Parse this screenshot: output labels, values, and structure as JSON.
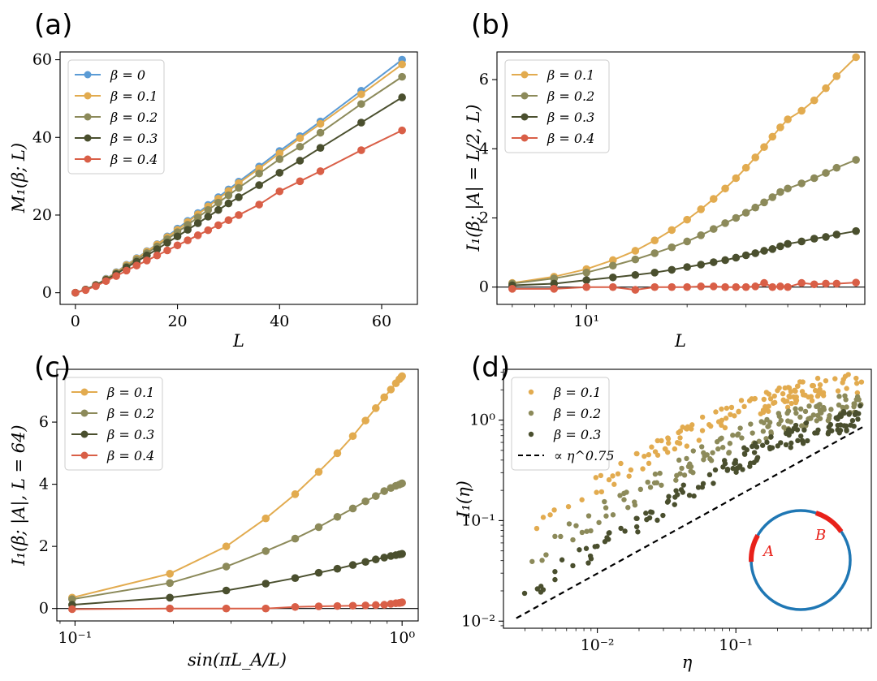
{
  "chart_data": [
    {
      "id": "a",
      "panel_label": "(a)",
      "type": "line",
      "xlabel": "L",
      "ylabel": "M₁(β; L)",
      "xscale": "linear",
      "yscale": "linear",
      "xlim": [
        -3,
        67
      ],
      "ylim": [
        -3,
        62
      ],
      "xticks": [
        0,
        20,
        40,
        60
      ],
      "xtick_labels": [
        "0",
        "20",
        "40",
        "60"
      ],
      "yticks": [
        0,
        20,
        40,
        60
      ],
      "ytick_labels": [
        "0",
        "20",
        "40",
        "60"
      ],
      "legend_position": "top-left",
      "x": [
        0,
        2,
        4,
        6,
        8,
        10,
        12,
        14,
        16,
        18,
        20,
        22,
        24,
        26,
        28,
        30,
        32,
        36,
        40,
        44,
        48,
        56,
        64
      ],
      "series": [
        {
          "name": "β = 0",
          "color": "#5b9bd5",
          "values": [
            0,
            0.8,
            2,
            3.6,
            5.3,
            7.2,
            8.9,
            10.7,
            12.5,
            14.5,
            16.5,
            18.5,
            20.5,
            22.6,
            24.6,
            26.6,
            28.6,
            32.5,
            36.5,
            40.3,
            44.1,
            52,
            60
          ]
        },
        {
          "name": "β = 0.1",
          "color": "#e2ab4f",
          "values": [
            0,
            0.8,
            2,
            3.5,
            5.2,
            7.1,
            8.8,
            10.6,
            12.4,
            14.3,
            16.2,
            18.2,
            20.2,
            22.2,
            24.2,
            26.2,
            28.2,
            32,
            35.9,
            39.8,
            43.5,
            51.1,
            58.8
          ]
        },
        {
          "name": "β = 0.2",
          "color": "#8c8a5a",
          "values": [
            0,
            0.8,
            2,
            3.4,
            5.0,
            6.8,
            8.5,
            10.2,
            11.9,
            13.8,
            15.6,
            17.5,
            19.4,
            21.3,
            23.2,
            25.1,
            27,
            30.7,
            34.4,
            37.6,
            41.2,
            48.6,
            55.6
          ]
        },
        {
          "name": "β = 0.3",
          "color": "#4a4f2e",
          "values": [
            0,
            0.8,
            1.9,
            3.3,
            4.8,
            6.5,
            8.0,
            9.6,
            11.2,
            12.9,
            14.5,
            16.2,
            17.9,
            19.6,
            21.3,
            23.0,
            24.6,
            27.7,
            30.9,
            34.0,
            37.3,
            43.8,
            50.3
          ]
        },
        {
          "name": "β = 0.4",
          "color": "#d95f47",
          "values": [
            0,
            0.7,
            1.7,
            3.0,
            4.3,
            5.7,
            7.0,
            8.3,
            9.6,
            10.9,
            12.2,
            13.5,
            14.8,
            16.1,
            17.4,
            18.7,
            20.0,
            22.7,
            26.1,
            28.7,
            31.3,
            36.7,
            41.8
          ]
        }
      ]
    },
    {
      "id": "b",
      "panel_label": "(b)",
      "type": "line",
      "xlabel": "L",
      "ylabel": "I₁(β; |A| = L/2, L)",
      "xscale": "log",
      "yscale": "linear",
      "xlim": [
        5.4,
        68
      ],
      "ylim": [
        -0.5,
        6.8
      ],
      "xticks": [
        10
      ],
      "xtick_labels": [
        "10¹"
      ],
      "yticks": [
        0,
        2,
        4,
        6
      ],
      "ytick_labels": [
        "0",
        "2",
        "4",
        "6"
      ],
      "hline": 0,
      "legend_position": "top-left",
      "x": [
        6,
        8,
        10,
        12,
        14,
        16,
        18,
        20,
        22,
        24,
        26,
        28,
        30,
        32,
        34,
        36,
        38,
        40,
        44,
        48,
        52,
        56,
        64
      ],
      "series": [
        {
          "name": "β = 0.1",
          "color": "#e2ab4f",
          "values": [
            0.12,
            0.3,
            0.52,
            0.78,
            1.05,
            1.35,
            1.65,
            1.95,
            2.25,
            2.55,
            2.85,
            3.15,
            3.45,
            3.75,
            4.05,
            4.35,
            4.62,
            4.85,
            5.1,
            5.4,
            5.75,
            6.1,
            6.65
          ]
        },
        {
          "name": "β = 0.2",
          "color": "#8c8a5a",
          "values": [
            0.1,
            0.25,
            0.42,
            0.62,
            0.8,
            0.98,
            1.15,
            1.32,
            1.5,
            1.68,
            1.85,
            2.0,
            2.15,
            2.3,
            2.45,
            2.6,
            2.75,
            2.85,
            3.0,
            3.15,
            3.3,
            3.45,
            3.68
          ]
        },
        {
          "name": "β = 0.3",
          "color": "#4a4f2e",
          "values": [
            0.05,
            0.1,
            0.2,
            0.28,
            0.35,
            0.42,
            0.5,
            0.58,
            0.65,
            0.72,
            0.78,
            0.85,
            0.92,
            0.98,
            1.05,
            1.1,
            1.18,
            1.25,
            1.32,
            1.4,
            1.45,
            1.52,
            1.62
          ]
        },
        {
          "name": "β = 0.4",
          "color": "#d95f47",
          "values": [
            -0.05,
            -0.05,
            0.0,
            0.0,
            -0.08,
            0.0,
            0.0,
            0.0,
            0.02,
            0.02,
            0.0,
            0.0,
            0.0,
            0.02,
            0.12,
            0.0,
            0.02,
            0.0,
            0.12,
            0.08,
            0.1,
            0.1,
            0.13
          ]
        }
      ]
    },
    {
      "id": "c",
      "panel_label": "(c)",
      "type": "line",
      "xlabel": "sin(πL_A/L)",
      "ylabel": "I₁(β; |A|, L = 64)",
      "xscale": "log",
      "yscale": "linear",
      "xlim": [
        0.088,
        1.12
      ],
      "ylim": [
        -0.4,
        7.7
      ],
      "xticks": [
        0.1,
        1
      ],
      "xtick_labels": [
        "10⁻¹",
        "10⁰"
      ],
      "yticks": [
        0,
        2,
        4,
        6
      ],
      "ytick_labels": [
        "0",
        "2",
        "4",
        "6"
      ],
      "hline": 0,
      "legend_position": "top-left",
      "x": [
        0.098,
        0.195,
        0.29,
        0.383,
        0.471,
        0.556,
        0.634,
        0.707,
        0.773,
        0.831,
        0.882,
        0.924,
        0.957,
        0.981,
        0.995,
        1.0
      ],
      "series": [
        {
          "name": "β = 0.1",
          "color": "#e2ab4f",
          "values": [
            0.35,
            1.12,
            2.0,
            2.9,
            3.68,
            4.4,
            5.0,
            5.55,
            6.05,
            6.45,
            6.8,
            7.05,
            7.25,
            7.38,
            7.45,
            7.48
          ]
        },
        {
          "name": "β = 0.2",
          "color": "#8c8a5a",
          "values": [
            0.3,
            0.82,
            1.35,
            1.85,
            2.25,
            2.62,
            2.95,
            3.22,
            3.45,
            3.62,
            3.78,
            3.88,
            3.95,
            3.99,
            4.02,
            4.03
          ]
        },
        {
          "name": "β = 0.3",
          "color": "#4a4f2e",
          "values": [
            0.12,
            0.35,
            0.58,
            0.8,
            0.98,
            1.15,
            1.28,
            1.4,
            1.5,
            1.58,
            1.64,
            1.69,
            1.72,
            1.74,
            1.75,
            1.76
          ]
        },
        {
          "name": "β = 0.4",
          "color": "#d95f47",
          "values": [
            -0.02,
            0.0,
            0.0,
            0.0,
            0.05,
            0.07,
            0.08,
            0.09,
            0.1,
            0.11,
            0.12,
            0.15,
            0.17,
            0.18,
            0.19,
            0.2
          ]
        }
      ]
    },
    {
      "id": "d",
      "panel_label": "(d)",
      "type": "scatter",
      "xlabel": "η",
      "ylabel": "I₁(η)",
      "xscale": "log",
      "yscale": "log",
      "xlim": [
        0.0021,
        0.95
      ],
      "ylim": [
        0.0085,
        3.2
      ],
      "xticks": [
        0.01,
        0.1
      ],
      "xtick_labels": [
        "10⁻²",
        "10⁻¹"
      ],
      "yticks": [
        0.01,
        0.1,
        1
      ],
      "ytick_labels": [
        "10⁻²",
        "10⁻¹",
        "10⁰"
      ],
      "legend_position": "top-left",
      "scatter_model": {
        "eta_min": 0.0026,
        "eta_max": 0.82,
        "points_per_series": 140
      },
      "series": [
        {
          "name": "β = 0.1",
          "color": "#e2ab4f",
          "curve": [
            [
              0.0026,
              0.068
            ],
            [
              0.01,
              0.22
            ],
            [
              0.03,
              0.55
            ],
            [
              0.1,
              1.2
            ],
            [
              0.3,
              1.9
            ],
            [
              0.8,
              2.4
            ]
          ]
        },
        {
          "name": "β = 0.2",
          "color": "#8c8a5a",
          "curve": [
            [
              0.0026,
              0.033
            ],
            [
              0.01,
              0.11
            ],
            [
              0.03,
              0.27
            ],
            [
              0.1,
              0.65
            ],
            [
              0.3,
              1.1
            ],
            [
              0.8,
              1.5
            ]
          ]
        },
        {
          "name": "β = 0.3",
          "color": "#4a4f2e",
          "curve": [
            [
              0.0026,
              0.017
            ],
            [
              0.01,
              0.055
            ],
            [
              0.03,
              0.14
            ],
            [
              0.1,
              0.38
            ],
            [
              0.3,
              0.75
            ],
            [
              0.8,
              1.1
            ]
          ]
        }
      ],
      "fit_line": {
        "name": "∝ η^0.75",
        "color": "#000000",
        "x": [
          0.0026,
          0.82
        ],
        "y": [
          0.0107,
          0.85
        ]
      },
      "inset": {
        "label_a": "A",
        "label_b": "B",
        "circle_color": "#1f77b4",
        "arc_color": "#e8211a"
      }
    }
  ]
}
